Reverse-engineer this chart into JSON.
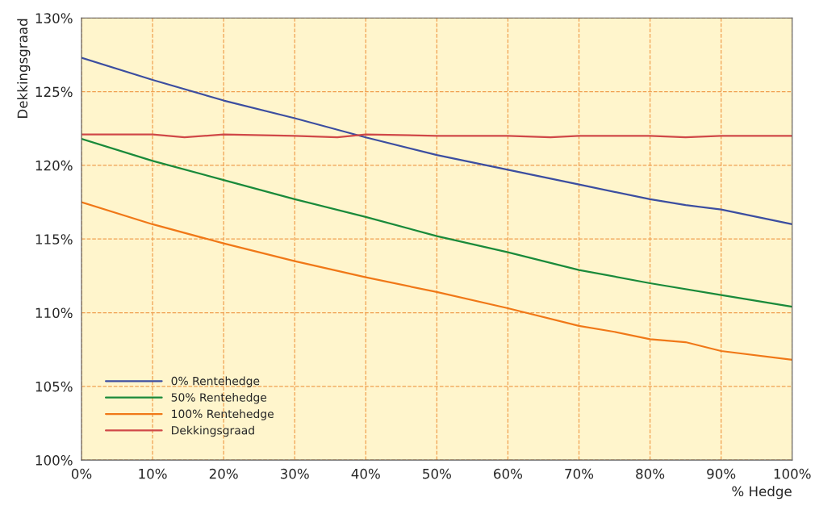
{
  "chart_data": {
    "type": "line",
    "xlabel": "% Hedge",
    "ylabel": "Dekkingsgraad",
    "xlim": [
      0,
      100
    ],
    "ylim": [
      100,
      130
    ],
    "xticks": [
      {
        "value": 0,
        "label": "0%"
      },
      {
        "value": 10,
        "label": "10%"
      },
      {
        "value": 20,
        "label": "20%"
      },
      {
        "value": 30,
        "label": "30%"
      },
      {
        "value": 40,
        "label": "40%"
      },
      {
        "value": 50,
        "label": "50%"
      },
      {
        "value": 60,
        "label": "60%"
      },
      {
        "value": 70,
        "label": "70%"
      },
      {
        "value": 80,
        "label": "80%"
      },
      {
        "value": 90,
        "label": "90%"
      },
      {
        "value": 100,
        "label": "100%"
      }
    ],
    "yticks": [
      {
        "value": 100,
        "label": "100%"
      },
      {
        "value": 105,
        "label": "105%"
      },
      {
        "value": 110,
        "label": "110%"
      },
      {
        "value": 115,
        "label": "115%"
      },
      {
        "value": 120,
        "label": "120%"
      },
      {
        "value": 125,
        "label": "125%"
      },
      {
        "value": 130,
        "label": "130%"
      }
    ],
    "grid": true,
    "legend": "bottom left",
    "marker": "none",
    "line_style": "solid",
    "series": [
      {
        "name": "0% Rentehedge",
        "color": "#3c4ea0",
        "x": [
          0,
          10,
          20,
          30,
          40,
          50,
          60,
          70,
          80,
          85,
          90,
          100
        ],
        "values": [
          127.3,
          125.8,
          124.4,
          123.2,
          121.9,
          120.7,
          119.7,
          118.7,
          117.7,
          117.3,
          117.0,
          116.0
        ]
      },
      {
        "name": "50% Rentehedge",
        "color": "#1a8a3a",
        "x": [
          0,
          10,
          20,
          30,
          40,
          50,
          60,
          70,
          80,
          90,
          100
        ],
        "values": [
          121.8,
          120.3,
          119.0,
          117.7,
          116.5,
          115.2,
          114.1,
          112.9,
          112.0,
          111.2,
          110.4
        ]
      },
      {
        "name": "100% Rentehedge",
        "color": "#f07818",
        "x": [
          0,
          10,
          20,
          30,
          40,
          50,
          60,
          70,
          75,
          80,
          85,
          90,
          100
        ],
        "values": [
          117.5,
          116.0,
          114.7,
          113.5,
          112.4,
          111.4,
          110.3,
          109.1,
          108.7,
          108.2,
          108.0,
          107.4,
          106.8
        ]
      },
      {
        "name": "Dekkingsgraad",
        "color": "#d04848",
        "x": [
          0,
          10,
          14.5,
          20,
          30,
          36,
          40,
          50,
          60,
          66,
          70,
          80,
          85,
          90,
          100
        ],
        "values": [
          122.1,
          122.1,
          121.9,
          122.1,
          122.0,
          121.9,
          122.1,
          122.0,
          122.0,
          121.9,
          122.0,
          122.0,
          121.9,
          122.0,
          122.0
        ]
      }
    ]
  }
}
